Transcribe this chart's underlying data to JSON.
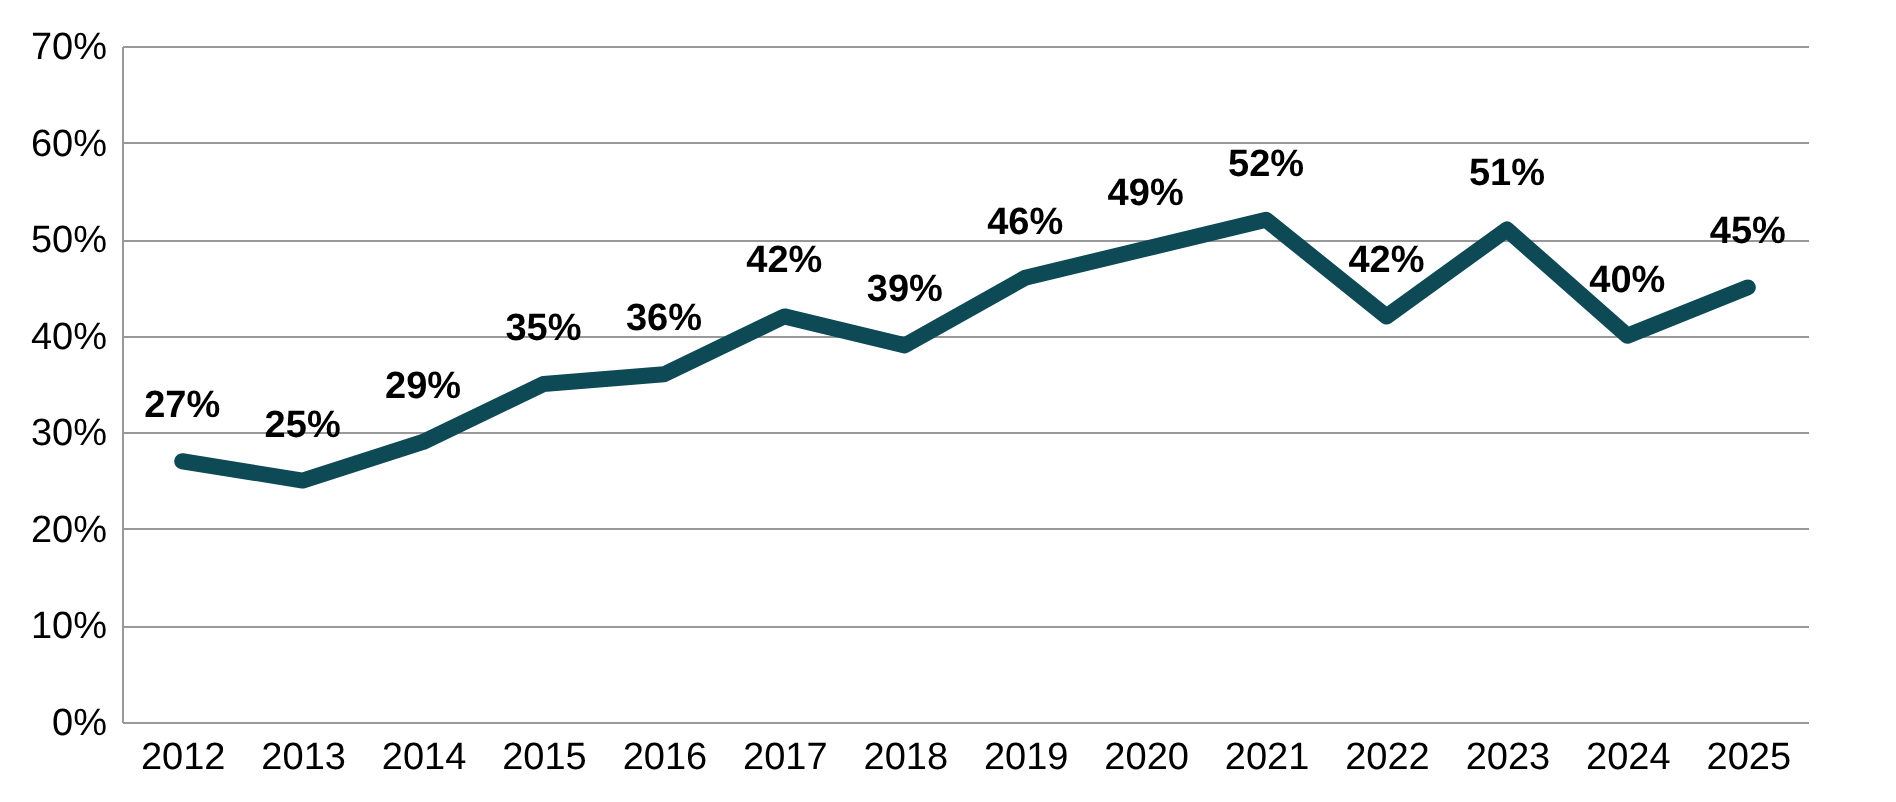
{
  "chart_data": {
    "type": "line",
    "categories": [
      "2012",
      "2013",
      "2014",
      "2015",
      "2016",
      "2017",
      "2018",
      "2019",
      "2020",
      "2021",
      "2022",
      "2023",
      "2024",
      "2025"
    ],
    "series": [
      {
        "color": "#0d4a55",
        "values": [
          27,
          25,
          29,
          35,
          36,
          42,
          39,
          46,
          49,
          52,
          42,
          51,
          40,
          45
        ]
      }
    ],
    "value_labels": [
      "27%",
      "25%",
      "29%",
      "35%",
      "36%",
      "42%",
      "39%",
      "46%",
      "49%",
      "52%",
      "42%",
      "51%",
      "40%",
      "45%"
    ],
    "ylim": [
      0,
      70
    ],
    "yticks": [
      {
        "value": 0,
        "label": "0%"
      },
      {
        "value": 10,
        "label": "10%"
      },
      {
        "value": 20,
        "label": "20%"
      },
      {
        "value": 30,
        "label": "30%"
      },
      {
        "value": 40,
        "label": "40%"
      },
      {
        "value": 50,
        "label": "50%"
      },
      {
        "value": 60,
        "label": "60%"
      },
      {
        "value": 70,
        "label": "70%"
      }
    ],
    "grid": "y",
    "marker": "none",
    "line_style": "solid"
  }
}
